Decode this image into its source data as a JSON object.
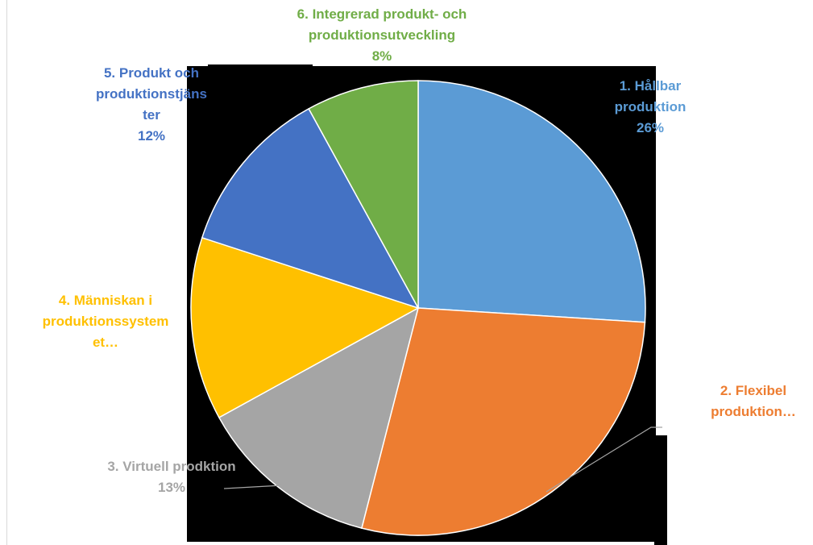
{
  "chart_data": {
    "type": "pie",
    "categories": [
      "1. Hållbar produktion",
      "2. Flexibel produktion…",
      "3. Virtuell prodktion",
      "4. Människan i produktionssystemet…",
      "5. Produkt och produktionstjänster",
      "6. Integrerad produkt- och produktionsutveckling"
    ],
    "values": [
      26,
      28,
      13,
      13,
      12,
      8
    ],
    "colors": [
      "#5b9bd5",
      "#ed7d31",
      "#a5a5a5",
      "#ffc000",
      "#4472c4",
      "#70ad47"
    ],
    "data_labels": [
      {
        "lines": [
          "1. Hållbar",
          "produktion",
          "26%"
        ]
      },
      {
        "lines": [
          "2. Flexibel",
          "produktion…"
        ]
      },
      {
        "lines": [
          "3. Virtuell prodktion",
          "13%"
        ]
      },
      {
        "lines": [
          "4. Människan i",
          "produktionssystem",
          "et…"
        ]
      },
      {
        "lines": [
          "5. Produkt och",
          "produktionstjäns",
          "ter",
          "12%"
        ]
      },
      {
        "lines": [
          "6. Integrerad produkt- och",
          "produktionsutveckling",
          "8%"
        ]
      }
    ]
  }
}
